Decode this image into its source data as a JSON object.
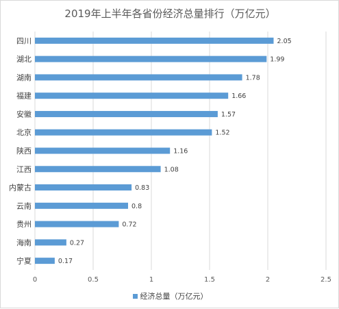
{
  "chart_data": {
    "type": "bar",
    "orientation": "horizontal",
    "title": "2019年上半年各省份经济总量排行（万亿元）",
    "categories": [
      "四川",
      "湖北",
      "湖南",
      "福建",
      "安徽",
      "北京",
      "陕西",
      "江西",
      "内蒙古",
      "云南",
      "贵州",
      "海南",
      "宁夏"
    ],
    "series": [
      {
        "name": "经济总量（万亿元）",
        "values": [
          2.05,
          1.99,
          1.78,
          1.66,
          1.57,
          1.52,
          1.16,
          1.08,
          0.83,
          0.8,
          0.72,
          0.27,
          0.17
        ],
        "labels": [
          "2.05",
          "1.99",
          "1.78",
          "1.66",
          "1.57",
          "1.52",
          "1.16",
          "1.08",
          "0.83",
          "0.8",
          "0.72",
          "0.27",
          "0.17"
        ]
      }
    ],
    "xlim": [
      0,
      2.5
    ],
    "xticks": [
      "0",
      "0.5",
      "1",
      "1.5",
      "2",
      "2.5"
    ],
    "grid": true,
    "legend_position": "bottom",
    "bar_color": "#5b9bd5"
  }
}
